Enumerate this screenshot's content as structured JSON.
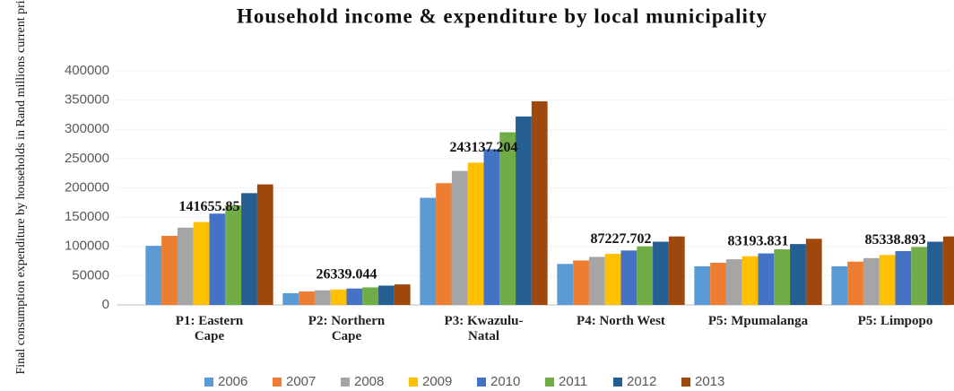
{
  "chart_data": {
    "type": "bar",
    "title": "Household income & expenditure by local municipality",
    "ylabel": "Final consumption expenditure by households in Rand millions current prices",
    "categories": [
      "P1: Eastern Cape",
      "P2: Northern Cape",
      "P3: Kwazulu-Natal",
      "P4: North West",
      "P5: Mpumalanga",
      "P5: Limpopo"
    ],
    "series": [
      {
        "name": "2006",
        "color": "#5b9bd5",
        "values": [
          101000,
          20000,
          183000,
          70000,
          66000,
          66000
        ]
      },
      {
        "name": "2007",
        "color": "#ed7d31",
        "values": [
          118000,
          23000,
          208000,
          76000,
          72000,
          74000
        ]
      },
      {
        "name": "2008",
        "color": "#a5a5a5",
        "values": [
          132000,
          25000,
          229000,
          82000,
          78000,
          80000
        ]
      },
      {
        "name": "2009",
        "color": "#ffc000",
        "values": [
          141655.85,
          26339.044,
          243137.204,
          87227.702,
          83193.831,
          85338.893
        ]
      },
      {
        "name": "2010",
        "color": "#4472c4",
        "values": [
          156000,
          28000,
          266000,
          93000,
          88000,
          92000
        ]
      },
      {
        "name": "2011",
        "color": "#70ad47",
        "values": [
          170000,
          30000,
          295000,
          100000,
          95000,
          99000
        ]
      },
      {
        "name": "2012",
        "color": "#255e91",
        "values": [
          191000,
          33000,
          322000,
          108000,
          104000,
          108000
        ]
      },
      {
        "name": "2013",
        "color": "#9e480e",
        "values": [
          206000,
          35000,
          348000,
          117000,
          113000,
          117000
        ]
      }
    ],
    "labeled_series": 3,
    "ylim": [
      0,
      400000
    ],
    "yticks": [
      0,
      50000,
      100000,
      150000,
      200000,
      250000,
      300000,
      350000,
      400000
    ],
    "legend": "bottom"
  }
}
